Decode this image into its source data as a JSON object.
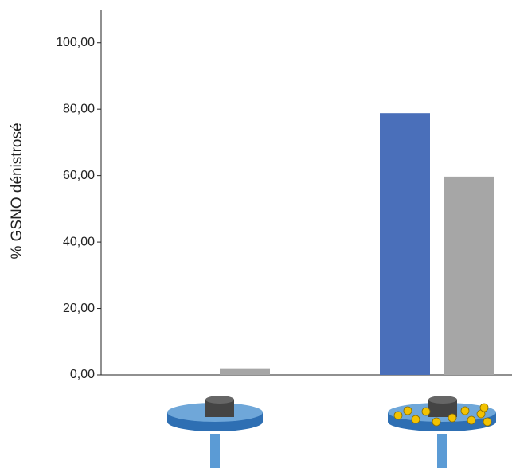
{
  "chart_data": {
    "type": "bar",
    "y_label": "% GSNO dénistrosé",
    "categories": [
      null,
      null
    ],
    "series": [
      {
        "color": "#4a6fba",
        "values": [
          0,
          78.8
        ]
      },
      {
        "color": "#a6a6a6",
        "values": [
          2,
          59.7
        ]
      }
    ],
    "ylim": [
      0,
      110
    ],
    "yticks": [
      {
        "value": 0,
        "label": "0,00"
      },
      {
        "value": 20,
        "label": "20,00"
      },
      {
        "value": 40,
        "label": "40,00"
      },
      {
        "value": 60,
        "label": "60,00"
      },
      {
        "value": 80,
        "label": "80,00"
      },
      {
        "value": 100,
        "label": "100,00"
      }
    ]
  }
}
